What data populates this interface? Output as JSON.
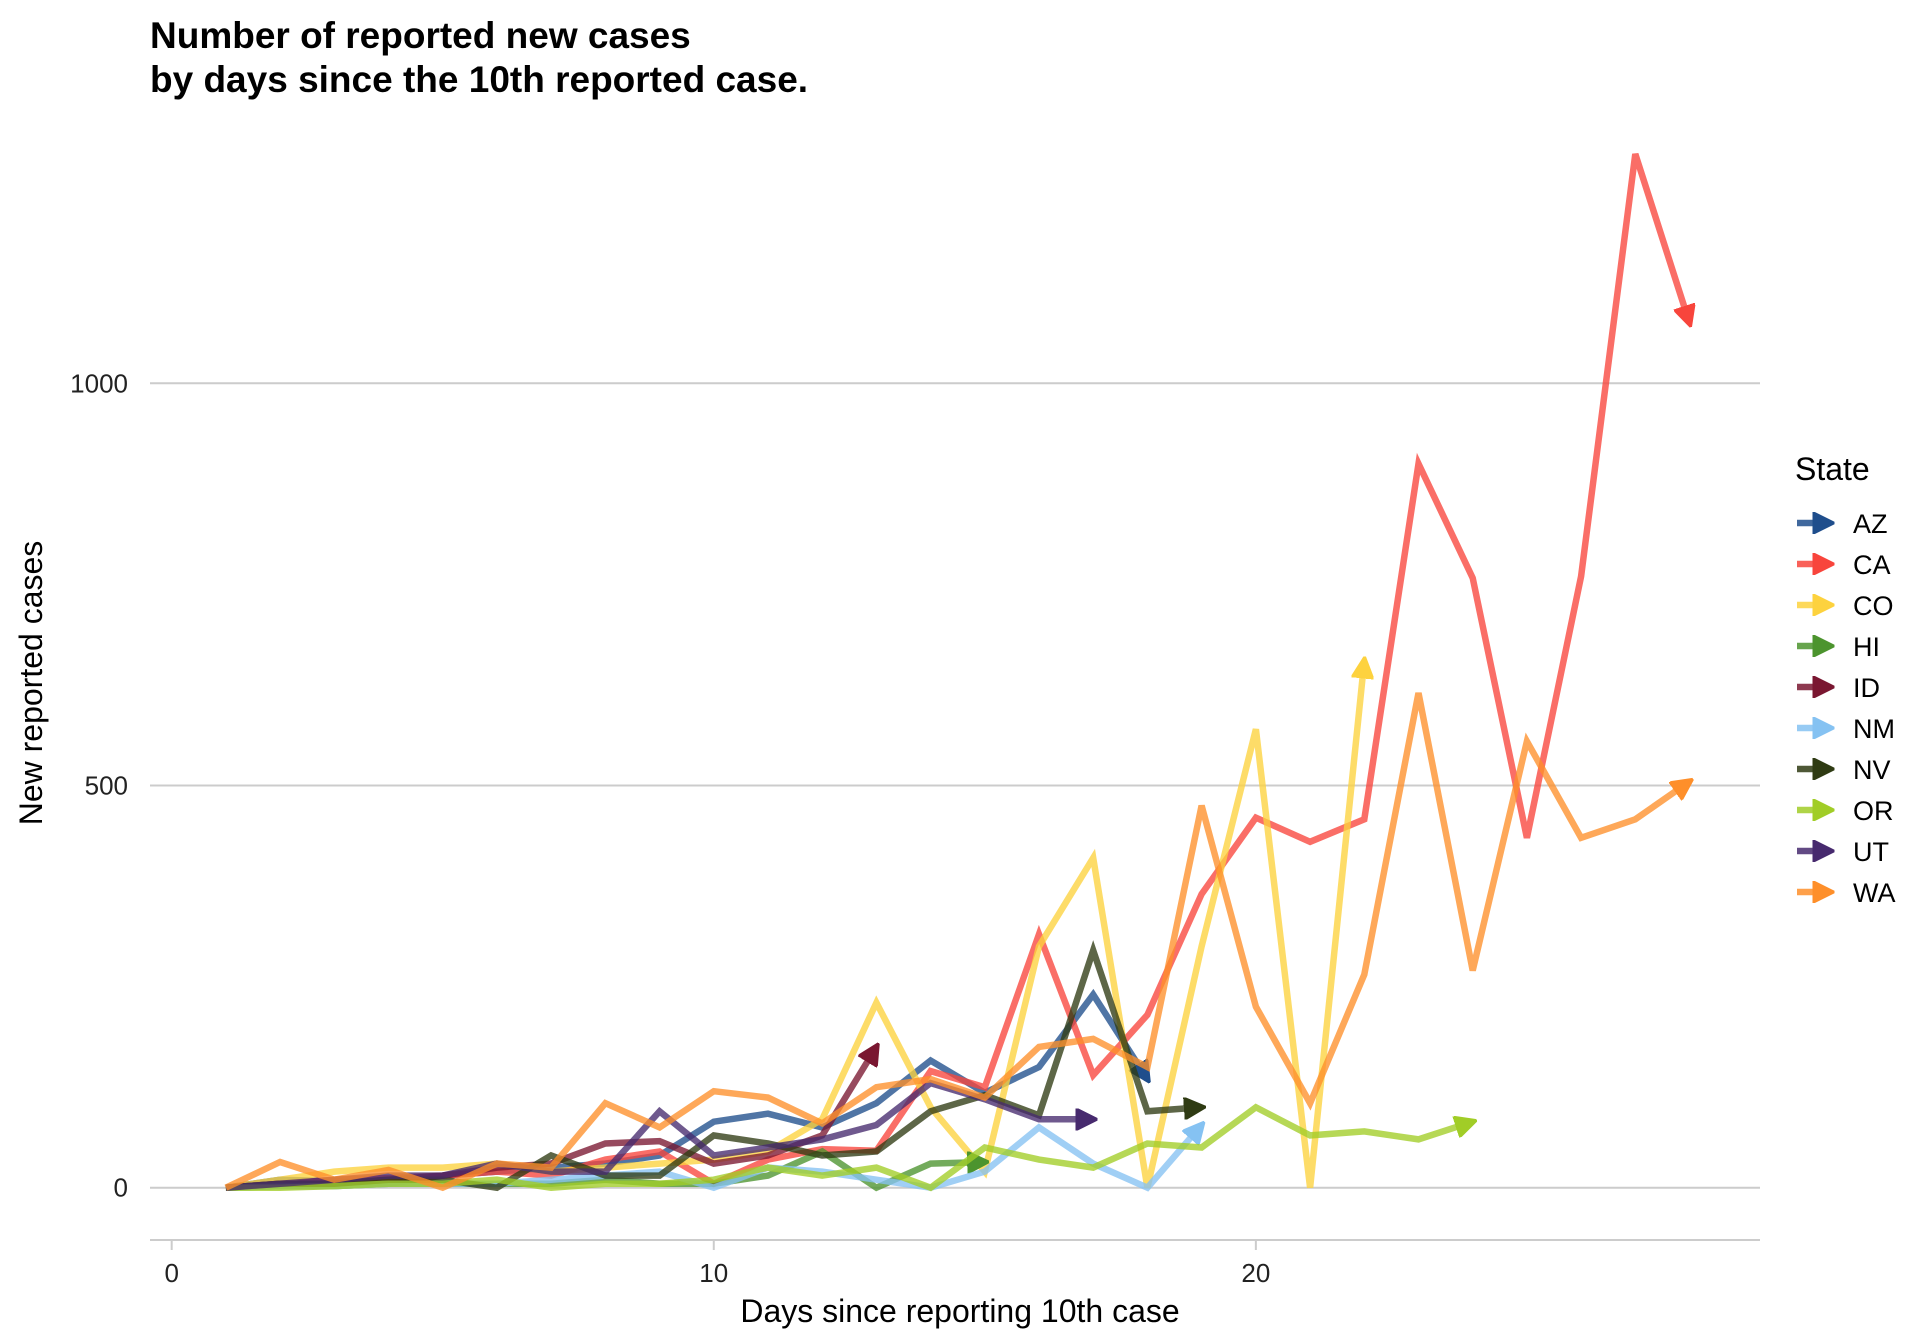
{
  "chart_data": {
    "type": "line",
    "title_lines": [
      "Number of reported new cases",
      "by days since the 10th reported case."
    ],
    "xlabel": "Days since reporting 10th case",
    "ylabel": "New reported cases",
    "xlim": [
      -0.4,
      29.3
    ],
    "ylim": [
      -65,
      1290
    ],
    "x_ticks": [
      0,
      10,
      20
    ],
    "y_ticks": [
      0,
      500,
      1000
    ],
    "grid": "horizontal",
    "legend": {
      "title": "State",
      "position": "right"
    },
    "series": [
      {
        "name": "AZ",
        "color": "#1f4e8c",
        "x": [
          1,
          2,
          3,
          4,
          5,
          6,
          7,
          8,
          9,
          10,
          11,
          12,
          13,
          14,
          15,
          16,
          17,
          18
        ],
        "y": [
          0,
          10,
          8,
          5,
          15,
          20,
          25,
          30,
          40,
          82,
          92,
          75,
          105,
          158,
          118,
          150,
          240,
          135
        ]
      },
      {
        "name": "CA",
        "color": "#f8453c",
        "x": [
          1,
          2,
          3,
          4,
          5,
          6,
          7,
          8,
          9,
          10,
          11,
          12,
          13,
          14,
          15,
          16,
          17,
          18,
          19,
          20,
          21,
          22,
          23,
          24,
          25,
          26,
          27,
          28
        ],
        "y": [
          0,
          5,
          10,
          12,
          15,
          20,
          15,
          35,
          45,
          5,
          35,
          48,
          46,
          145,
          125,
          315,
          140,
          215,
          365,
          460,
          430,
          458,
          900,
          758,
          435,
          760,
          1285,
          1075
        ]
      },
      {
        "name": "CO",
        "color": "#fdd23e",
        "x": [
          1,
          2,
          3,
          4,
          5,
          6,
          7,
          8,
          9,
          10,
          11,
          12,
          13,
          14,
          15,
          16,
          17,
          18,
          19,
          20,
          21,
          22
        ],
        "y": [
          0,
          10,
          20,
          25,
          25,
          30,
          20,
          25,
          30,
          35,
          45,
          85,
          230,
          100,
          20,
          300,
          410,
          0,
          300,
          570,
          0,
          655
        ]
      },
      {
        "name": "HI",
        "color": "#4c942e",
        "x": [
          1,
          2,
          3,
          4,
          5,
          6,
          7,
          8,
          9,
          10,
          11,
          12,
          13,
          14,
          15
        ],
        "y": [
          0,
          2,
          2,
          5,
          5,
          5,
          5,
          10,
          5,
          5,
          15,
          45,
          0,
          30,
          32
        ]
      },
      {
        "name": "ID",
        "color": "#7a1731",
        "x": [
          1,
          2,
          3,
          4,
          5,
          6,
          7,
          8,
          9,
          10,
          11,
          12,
          13
        ],
        "y": [
          0,
          5,
          5,
          10,
          15,
          25,
          30,
          55,
          58,
          30,
          40,
          65,
          175
        ]
      },
      {
        "name": "NM",
        "color": "#85c2f2",
        "x": [
          1,
          2,
          3,
          4,
          5,
          6,
          7,
          8,
          9,
          10,
          11,
          12,
          13,
          14,
          15,
          16,
          17,
          18,
          19
        ],
        "y": [
          0,
          2,
          2,
          5,
          5,
          5,
          10,
          15,
          20,
          0,
          25,
          20,
          10,
          0,
          20,
          75,
          30,
          0,
          78
        ]
      },
      {
        "name": "NV",
        "color": "#2f3b13",
        "x": [
          1,
          2,
          3,
          4,
          5,
          6,
          7,
          8,
          9,
          10,
          11,
          12,
          13,
          14,
          15,
          16,
          17,
          18,
          19
        ],
        "y": [
          0,
          5,
          5,
          10,
          10,
          0,
          40,
          15,
          15,
          65,
          55,
          40,
          45,
          95,
          115,
          90,
          295,
          95,
          100
        ]
      },
      {
        "name": "OR",
        "color": "#a1cd27",
        "x": [
          1,
          2,
          3,
          4,
          5,
          6,
          7,
          8,
          9,
          10,
          11,
          12,
          13,
          14,
          15,
          16,
          17,
          18,
          19,
          20,
          21,
          22,
          23,
          24
        ],
        "y": [
          0,
          0,
          2,
          5,
          5,
          10,
          0,
          5,
          5,
          10,
          25,
          15,
          25,
          0,
          50,
          35,
          25,
          55,
          50,
          100,
          65,
          70,
          60,
          82
        ]
      },
      {
        "name": "UT",
        "color": "#472a6e",
        "x": [
          1,
          2,
          3,
          4,
          5,
          6,
          7,
          8,
          9,
          10,
          11,
          12,
          13,
          14,
          15,
          16,
          17
        ],
        "y": [
          0,
          5,
          10,
          15,
          15,
          30,
          20,
          20,
          95,
          40,
          50,
          60,
          78,
          130,
          110,
          85,
          85
        ]
      },
      {
        "name": "WA",
        "color": "#fe8f2a",
        "x": [
          1,
          2,
          3,
          4,
          5,
          6,
          7,
          8,
          9,
          10,
          11,
          12,
          13,
          14,
          15,
          16,
          17,
          18,
          19,
          20,
          21,
          22,
          23,
          24,
          25,
          26,
          27,
          28
        ],
        "y": [
          0,
          32,
          10,
          22,
          0,
          30,
          25,
          105,
          75,
          120,
          112,
          80,
          125,
          135,
          112,
          175,
          185,
          150,
          475,
          225,
          105,
          265,
          615,
          270,
          555,
          435,
          458,
          505
        ]
      }
    ]
  }
}
